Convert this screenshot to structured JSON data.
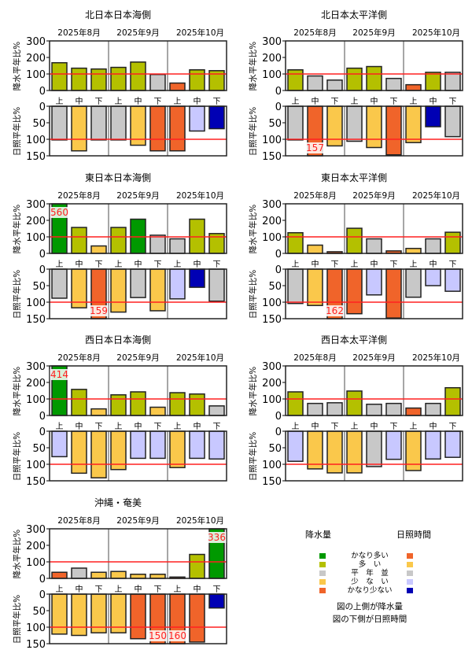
{
  "chart_data": {
    "type": "bar",
    "months": [
      "2025年8月",
      "2025年9月",
      "2025年10月"
    ],
    "categories": [
      "上",
      "中",
      "下",
      "上",
      "中",
      "下",
      "上",
      "中",
      "下"
    ],
    "rain_ylabel": "降水平年比%",
    "sun_ylabel": "日照平年比%",
    "rain_ylim": [
      0,
      300
    ],
    "rain_ticks": [
      "0",
      "100",
      "200",
      "300"
    ],
    "sun_ylim": [
      0,
      150
    ],
    "sun_inverted": true,
    "sun_ticks": [
      "0",
      "50",
      "100",
      "150"
    ],
    "reference_line": 100,
    "colors": {
      "rain": {
        "kanari_ooi": "#009900",
        "ooi": "#b4c000",
        "heinen": "#c8c8c8",
        "sukunai": "#fac84b",
        "kanari_sukunai": "#f0642a"
      },
      "sun": {
        "kanari_ooi": "#f0642a",
        "ooi": "#fac84b",
        "heinen": "#c8c8c8",
        "sukunai": "#c8c8ff",
        "kanari_sukunai": "#0000b4"
      },
      "reference": "#ff2020"
    },
    "panels": [
      {
        "title": "北日本日本海側",
        "rain": {
          "values": [
            168,
            135,
            130,
            140,
            172,
            97,
            45,
            125,
            120
          ],
          "classes": [
            "ooi",
            "ooi",
            "ooi",
            "ooi",
            "ooi",
            "heinen",
            "kanari_sukunai",
            "ooi",
            "ooi"
          ]
        },
        "sun": {
          "values": [
            102,
            135,
            102,
            102,
            118,
            135,
            135,
            75,
            68
          ],
          "classes": [
            "heinen",
            "ooi",
            "heinen",
            "heinen",
            "ooi",
            "kanari_ooi",
            "kanari_ooi",
            "sukunai",
            "kanari_sukunai"
          ]
        }
      },
      {
        "title": "北日本太平洋側",
        "rain": {
          "values": [
            125,
            88,
            63,
            135,
            145,
            73,
            35,
            110,
            110
          ],
          "classes": [
            "ooi",
            "heinen",
            "heinen",
            "ooi",
            "ooi",
            "heinen",
            "kanari_sukunai",
            "ooi",
            "heinen"
          ]
        },
        "sun": {
          "values": [
            102,
            157,
            120,
            106,
            125,
            147,
            110,
            62,
            92
          ],
          "classes": [
            "heinen",
            "kanari_ooi",
            "ooi",
            "heinen",
            "ooi",
            "kanari_ooi",
            "ooi",
            "kanari_sukunai",
            "heinen"
          ]
        }
      },
      {
        "title": "東日本日本海側",
        "rain": {
          "values": [
            560,
            157,
            45,
            157,
            207,
            110,
            88,
            207,
            120
          ],
          "classes": [
            "kanari_ooi",
            "ooi",
            "sukunai",
            "ooi",
            "kanari_ooi",
            "heinen",
            "heinen",
            "ooi",
            "ooi"
          ]
        },
        "sun": {
          "values": [
            88,
            117,
            159,
            130,
            86,
            126,
            90,
            55,
            97
          ],
          "classes": [
            "heinen",
            "ooi",
            "kanari_ooi",
            "ooi",
            "heinen",
            "ooi",
            "sukunai",
            "kanari_sukunai",
            "heinen"
          ]
        }
      },
      {
        "title": "東日本太平洋側",
        "rain": {
          "values": [
            125,
            50,
            10,
            152,
            88,
            15,
            30,
            88,
            128
          ],
          "classes": [
            "ooi",
            "sukunai",
            "kanari_sukunai",
            "ooi",
            "heinen",
            "kanari_sukunai",
            "sukunai",
            "heinen",
            "ooi"
          ]
        },
        "sun": {
          "values": [
            104,
            110,
            162,
            135,
            78,
            148,
            85,
            50,
            67
          ],
          "classes": [
            "heinen",
            "ooi",
            "kanari_ooi",
            "kanari_ooi",
            "sukunai",
            "kanari_ooi",
            "heinen",
            "sukunai",
            "sukunai"
          ]
        }
      },
      {
        "title": "西日本日本海側",
        "rain": {
          "values": [
            414,
            158,
            40,
            125,
            143,
            50,
            138,
            130,
            58
          ],
          "classes": [
            "kanari_ooi",
            "ooi",
            "sukunai",
            "ooi",
            "ooi",
            "sukunai",
            "ooi",
            "ooi",
            "heinen"
          ]
        },
        "sun": {
          "values": [
            77,
            127,
            141,
            116,
            82,
            82,
            110,
            82,
            84
          ],
          "classes": [
            "sukunai",
            "ooi",
            "ooi",
            "ooi",
            "sukunai",
            "sukunai",
            "ooi",
            "sukunai",
            "sukunai"
          ]
        }
      },
      {
        "title": "西日本太平洋側",
        "rain": {
          "values": [
            143,
            73,
            77,
            148,
            68,
            73,
            45,
            73,
            168
          ],
          "classes": [
            "ooi",
            "heinen",
            "heinen",
            "ooi",
            "heinen",
            "heinen",
            "kanari_sukunai",
            "heinen",
            "ooi"
          ]
        },
        "sun": {
          "values": [
            91,
            114,
            126,
            126,
            107,
            85,
            119,
            84,
            79
          ],
          "classes": [
            "sukunai",
            "ooi",
            "ooi",
            "ooi",
            "heinen",
            "sukunai",
            "ooi",
            "sukunai",
            "sukunai"
          ]
        }
      },
      {
        "title": "沖縄・奄美",
        "rain": {
          "values": [
            37,
            62,
            37,
            42,
            25,
            25,
            8,
            145,
            336
          ],
          "classes": [
            "kanari_sukunai",
            "heinen",
            "sukunai",
            "sukunai",
            "sukunai",
            "sukunai",
            "kanari_sukunai",
            "ooi",
            "kanari_ooi"
          ]
        },
        "sun": {
          "values": [
            121,
            125,
            117,
            117,
            135,
            150,
            160,
            145,
            42
          ],
          "classes": [
            "ooi",
            "ooi",
            "ooi",
            "ooi",
            "kanari_ooi",
            "kanari_ooi",
            "kanari_ooi",
            "kanari_ooi",
            "kanari_sukunai"
          ]
        }
      }
    ]
  },
  "legend": {
    "rain_header": "降水量",
    "sun_header": "日照時間",
    "labels": [
      "かなり多い",
      "多　い",
      "平　年　並",
      "少　な　い",
      "かなり少ない"
    ],
    "rain_order": [
      "kanari_ooi",
      "ooi",
      "heinen",
      "sukunai",
      "kanari_sukunai"
    ],
    "sun_order": [
      "kanari_ooi",
      "ooi",
      "heinen",
      "sukunai",
      "kanari_sukunai"
    ],
    "note_top": "図の上側が降水量",
    "note_bottom": "図の下側が日照時間"
  }
}
